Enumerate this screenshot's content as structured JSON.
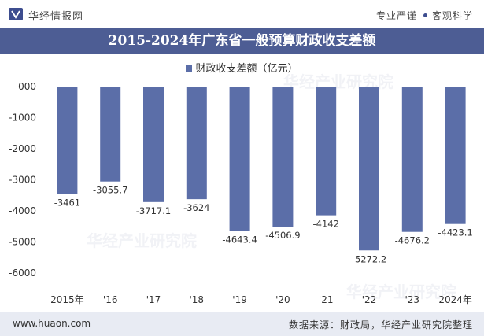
{
  "header": {
    "brand": "华经情报网",
    "tag_left": "专业严谨",
    "tag_right": "客观科学"
  },
  "footer": {
    "site": "www.huaon.com",
    "source": "数据来源：财政局，华经产业研究院整理"
  },
  "watermark": "华经产业研究院",
  "colors": {
    "bar": "#5b6ea8",
    "title_bg": "#4d5d94",
    "footer_bg": "#e8ebf3"
  },
  "chart_data": {
    "type": "bar",
    "title": "2015-2024年广东省一般预算财政收支差额",
    "legend_position": "top",
    "grid": false,
    "categories": [
      "2015年",
      "'16",
      "'17",
      "'18",
      "'19",
      "'20",
      "'21",
      "'22",
      "'23",
      "2024年"
    ],
    "series": [
      {
        "name": "财政收支差额（亿元）",
        "values": [
          -3461,
          -3055.7,
          -3717.1,
          -3624,
          -4643.4,
          -4506.9,
          -4142,
          -5272.2,
          -4676.2,
          -4423.1
        ],
        "labels": [
          "-3461",
          "-3055.7",
          "-3717.1",
          "-3624",
          "-4643.4",
          "-4506.9",
          "-4142",
          "-5272.2",
          "-4676.2",
          "-4423.1"
        ]
      }
    ],
    "ylim": [
      -6000,
      0
    ],
    "yticks": [
      0,
      -1000,
      -2000,
      -3000,
      -4000,
      -5000,
      -6000
    ],
    "ytick_labels": [
      "000",
      "-1000",
      "-2000",
      "-3000",
      "-4000",
      "-5000",
      "-6000"
    ]
  }
}
